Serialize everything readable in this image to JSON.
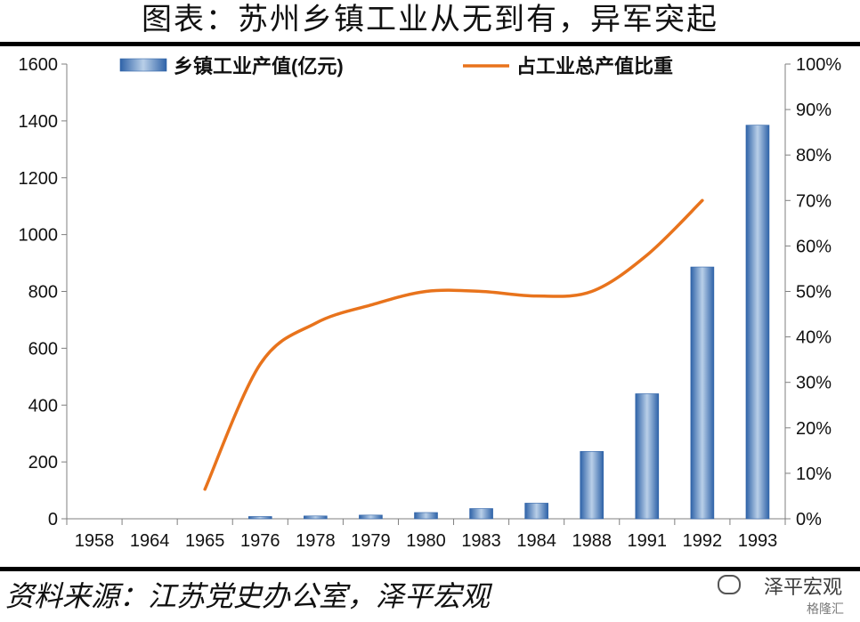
{
  "title": "图表：苏州乡镇工业从无到有，异军突起",
  "source": "资料来源：江苏党史办公室，泽平宏观",
  "watermark": {
    "main": "泽平宏观",
    "sub": "格隆汇"
  },
  "colors": {
    "bar": "#4a7fc0",
    "line": "#e8731c"
  },
  "chart_data": {
    "type": "bar",
    "categories": [
      "1958",
      "1964",
      "1965",
      "1976",
      "1978",
      "1979",
      "1980",
      "1983",
      "1984",
      "1988",
      "1991",
      "1992",
      "1993"
    ],
    "series": [
      {
        "name": "乡镇工业产值(亿元)",
        "type": "bar",
        "axis": "left",
        "values": [
          0,
          0,
          0,
          8,
          10,
          13,
          22,
          36,
          55,
          237,
          440,
          886,
          1385
        ]
      },
      {
        "name": "占工业总产值比重",
        "type": "line",
        "axis": "right",
        "smooth": true,
        "values": [
          null,
          null,
          0.065,
          0.34,
          0.43,
          0.47,
          0.5,
          0.5,
          0.49,
          0.5,
          0.58,
          0.7,
          null
        ]
      }
    ],
    "left_axis": {
      "ylim": [
        0,
        1600
      ],
      "ticks": [
        "0",
        "200",
        "400",
        "600",
        "800",
        "1000",
        "1200",
        "1400",
        "1600"
      ]
    },
    "right_axis": {
      "ylim": [
        0,
        1
      ],
      "ticks": [
        "0%",
        "10%",
        "20%",
        "30%",
        "40%",
        "50%",
        "60%",
        "70%",
        "80%",
        "90%",
        "100%"
      ]
    },
    "legend": "top",
    "grid": false
  }
}
